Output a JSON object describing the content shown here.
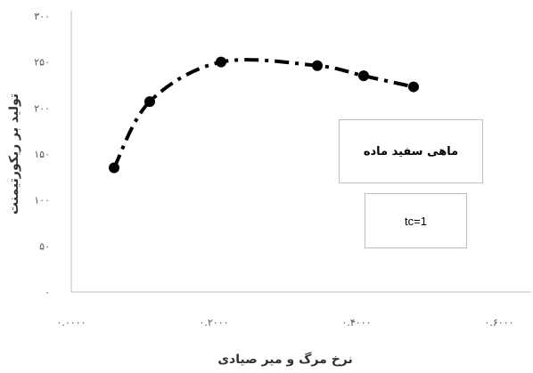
{
  "chart_data": {
    "type": "scatter",
    "title": "",
    "xlabel": "نرخ مرگ و میر صیادی",
    "ylabel": "تولید بر ریکورتیمنت",
    "xlim": [
      0,
      0.6
    ],
    "ylim": [
      0,
      300
    ],
    "x_ticks": [
      0,
      0.2,
      0.4,
      0.6
    ],
    "x_tick_labels": [
      "۰.۰۰۰۰",
      "۰.۲۰۰۰",
      "۰.۴۰۰۰",
      "۰.۶۰۰۰"
    ],
    "y_ticks": [
      0,
      50,
      100,
      150,
      200,
      250,
      300
    ],
    "y_tick_labels": [
      "۰",
      "۵۰",
      "۱۰۰",
      "۱۵۰",
      "۲۰۰",
      "۲۵۰",
      "۳۰۰"
    ],
    "grid": false,
    "series": [
      {
        "name": "ماهی سفید ماده",
        "x": [
          0.06,
          0.11,
          0.21,
          0.345,
          0.41,
          0.48
        ],
        "y": [
          135,
          207,
          250,
          246,
          235,
          223
        ],
        "color": "#000000",
        "line_style": "dash-dot"
      }
    ],
    "annotations": [
      "tc=1"
    ]
  }
}
